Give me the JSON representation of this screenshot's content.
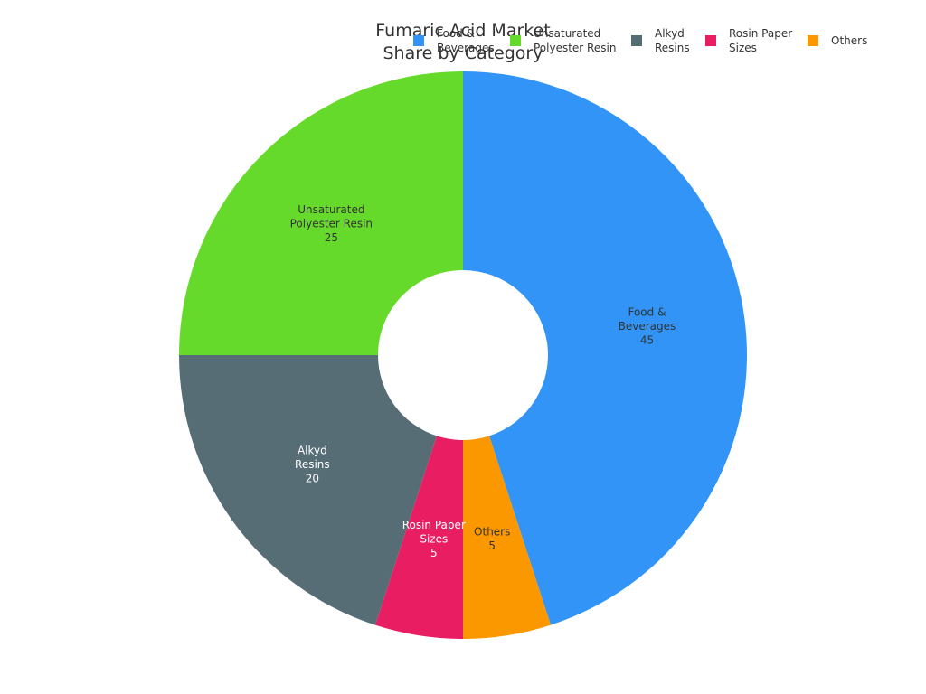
{
  "chart_data": {
    "type": "pie",
    "donut": true,
    "title_lines": [
      "Fumaric Acid Market",
      "Share by Category"
    ],
    "legend_position": "top-right",
    "slices": [
      {
        "key": "food",
        "label_lines": [
          "Food &",
          "Beverages"
        ],
        "value": 45,
        "color": "#3194F6",
        "text_color": "#333333"
      },
      {
        "key": "others",
        "label_lines": [
          "Others"
        ],
        "value": 5,
        "color": "#FB9800",
        "text_color": "#333333"
      },
      {
        "key": "rosin",
        "label_lines": [
          "Rosin Paper",
          "Sizes"
        ],
        "value": 5,
        "color": "#E91E62",
        "text_color": "#ffffff"
      },
      {
        "key": "alkyd",
        "label_lines": [
          "Alkyd",
          "Resins"
        ],
        "value": 20,
        "color": "#566D76",
        "text_color": "#ffffff"
      },
      {
        "key": "upr",
        "label_lines": [
          "Unsaturated",
          "Polyester Resin"
        ],
        "value": 25,
        "color": "#66DA2A",
        "text_color": "#333333"
      }
    ],
    "legend": [
      {
        "label_lines": [
          "Food &",
          "Beverages"
        ],
        "color": "#3194F6"
      },
      {
        "label_lines": [
          "Unsaturated",
          "Polyester Resin"
        ],
        "color": "#66DA2A"
      },
      {
        "label_lines": [
          "Alkyd",
          "Resins"
        ],
        "color": "#566D76"
      },
      {
        "label_lines": [
          "Rosin Paper",
          "Sizes"
        ],
        "color": "#E91E62"
      },
      {
        "label_lines": [
          "Others"
        ],
        "color": "#FB9800"
      }
    ]
  }
}
